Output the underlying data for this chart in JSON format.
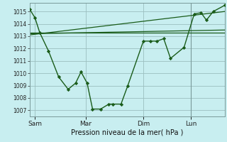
{
  "background_color": "#c8eef0",
  "grid_color": "#9bbfbf",
  "line_color": "#1a5c1a",
  "marker_color": "#1a5c1a",
  "xlabel": "Pression niveau de la mer( hPa )",
  "ylim": [
    1006.5,
    1015.7
  ],
  "yticks": [
    1007,
    1008,
    1009,
    1010,
    1011,
    1012,
    1013,
    1014,
    1015
  ],
  "x_tick_labels": [
    "Sam",
    "Mar",
    "Dim",
    "Lun"
  ],
  "x_tick_positions": [
    35,
    110,
    195,
    265
  ],
  "xlim": [
    27,
    315
  ],
  "line1_x": [
    27,
    35,
    42,
    55,
    70,
    84,
    95,
    103,
    112,
    120,
    132,
    144,
    150,
    162,
    172,
    195,
    205,
    215,
    225,
    235,
    255,
    270,
    280,
    288,
    298,
    315
  ],
  "line1_y": [
    1015.2,
    1014.5,
    1013.3,
    1011.8,
    1009.7,
    1008.7,
    1009.2,
    1010.1,
    1009.2,
    1007.1,
    1007.1,
    1007.5,
    1007.5,
    1007.5,
    1009.0,
    1012.6,
    1012.6,
    1012.6,
    1012.8,
    1011.2,
    1012.1,
    1014.8,
    1014.9,
    1014.3,
    1015.0,
    1015.5
  ],
  "line2_x": [
    27,
    315
  ],
  "line2_y": [
    1013.3,
    1013.3
  ],
  "line3_x": [
    27,
    315
  ],
  "line3_y": [
    1013.2,
    1013.5
  ],
  "line4_x": [
    27,
    315
  ],
  "line4_y": [
    1013.1,
    1015.0
  ],
  "vline_x": 265,
  "vline_color": "#7a9a9a"
}
